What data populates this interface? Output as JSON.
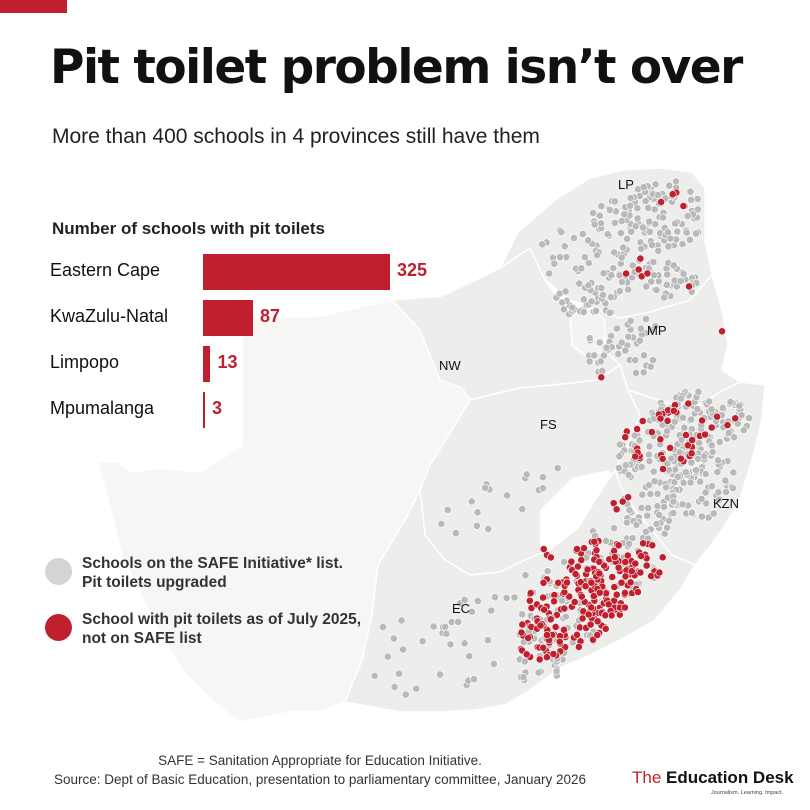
{
  "title": "Pit toilet problem isn’t over",
  "subtitle": "More than 400 schools in 4 provinces still have them",
  "colors": {
    "accent": "#c0202e",
    "safe_dot": "#b9b9b9",
    "province_fill": "#ededeb",
    "province_border": "#ffffff"
  },
  "map": {
    "province_labels": [
      "LP",
      "MP",
      "NW",
      "FS",
      "KZN",
      "EC"
    ]
  },
  "chart_data": {
    "type": "bar",
    "orientation": "horizontal",
    "title": "Number of schools with pit toilets",
    "categories": [
      "Eastern Cape",
      "KwaZulu-Natal",
      "Limpopo",
      "Mpumalanga"
    ],
    "values": [
      325,
      87,
      13,
      3
    ],
    "value_labels": [
      "325",
      "87",
      "13",
      "3"
    ],
    "xlim": [
      0,
      325
    ],
    "grid": false
  },
  "legend": {
    "items": [
      {
        "label": "Schools on the SAFE Initiative* list. Pit toilets upgraded",
        "color": "#d4d4d4"
      },
      {
        "label": "School with pit toilets as of July 2025, not on SAFE list",
        "color": "#c0202e"
      }
    ]
  },
  "footnote": {
    "line1": "SAFE = Sanitation Appropriate for Education Initiative.",
    "line2": "Source: Dept of Basic Education, presentation to parliamentary committee, January 2026"
  },
  "brand": {
    "prefix": "The ",
    "name": "Education Desk",
    "tagline": "Journalism. Learning. Impact."
  }
}
